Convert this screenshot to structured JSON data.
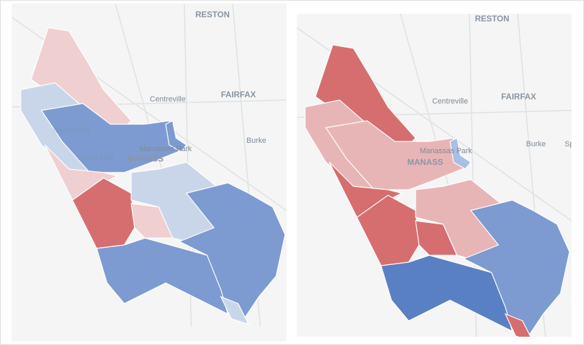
{
  "colors": {
    "strong_red": "#d66e6f",
    "light_red": "#e8b5b6",
    "pale_red": "#f0cfd1",
    "strong_blue": "#5a80c4",
    "medium_blue": "#7d9bd0",
    "light_blue": "#a9bfe3",
    "pale_blue": "#c9d6ea",
    "boundary": "#ffffff",
    "basemap": "#f4f5f4",
    "road": "#dfe1e2"
  },
  "maps": [
    {
      "labels": {
        "reston": "RESTON",
        "centreville": "Centreville",
        "fairfax": "FAIRFAX",
        "burke": "Burke",
        "manassas_park": "Manassas Park",
        "manassas": "MANASS",
        "gainesville": "Gainesville",
        "linton_hall": "Linton Hall"
      },
      "regions": {
        "north": "pale_red",
        "west": "pale_blue",
        "center": "medium_blue",
        "southwest": "pale_red",
        "south_central": "strong_red",
        "south_pocket": "pale_red",
        "middle": "pale_blue",
        "east": "medium_blue",
        "lower": "medium_blue",
        "bottom": "pale_blue",
        "mp_east": "medium_blue"
      }
    },
    {
      "labels": {
        "reston": "RESTON",
        "centreville": "Centreville",
        "fairfax": "FAIRFAX",
        "burke": "Burke",
        "springfield": "Sp",
        "manassas_park": "Manassas Park",
        "manassas": "MANASS"
      },
      "regions": {
        "north": "strong_red",
        "west": "light_red",
        "center": "light_red",
        "southwest": "strong_red",
        "south_central": "strong_red",
        "south_pocket": "strong_red",
        "middle": "light_red",
        "east": "medium_blue",
        "lower": "strong_blue",
        "bottom": "strong_red",
        "mp_east": "light_blue"
      }
    }
  ]
}
